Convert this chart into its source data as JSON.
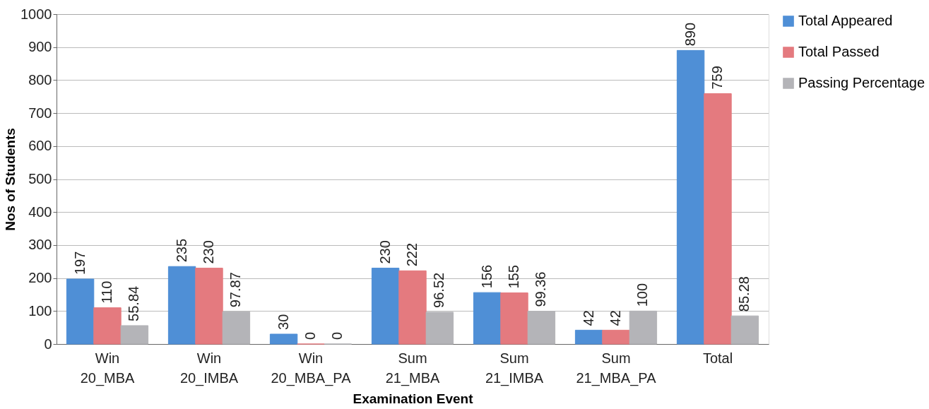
{
  "chart_data": {
    "type": "bar",
    "xlabel": "Examination Event",
    "ylabel": "Nos of Students",
    "categories": [
      "Win 20_MBA",
      "Win 20_IMBA",
      "Win 20_MBA_PA",
      "Sum 21_MBA",
      "Sum 21_IMBA",
      "Sum 21_MBA_PA",
      "Total"
    ],
    "series": [
      {
        "name": "Total Appeared",
        "color": "#4f8fd6",
        "values": [
          197,
          235,
          30,
          230,
          156,
          42,
          890
        ]
      },
      {
        "name": "Total Passed",
        "color": "#e47a7f",
        "values": [
          110,
          230,
          0,
          222,
          155,
          42,
          759
        ]
      },
      {
        "name": "Passing Percentage",
        "color": "#b4b4b8",
        "values": [
          55.84,
          97.87,
          0,
          96.52,
          99.36,
          100,
          85.28
        ]
      }
    ],
    "ylim": [
      0,
      1000
    ],
    "yticks": [
      0,
      100,
      200,
      300,
      400,
      500,
      600,
      700,
      800,
      900,
      1000
    ],
    "grid": "y",
    "legend": "right",
    "data_labels": true
  }
}
